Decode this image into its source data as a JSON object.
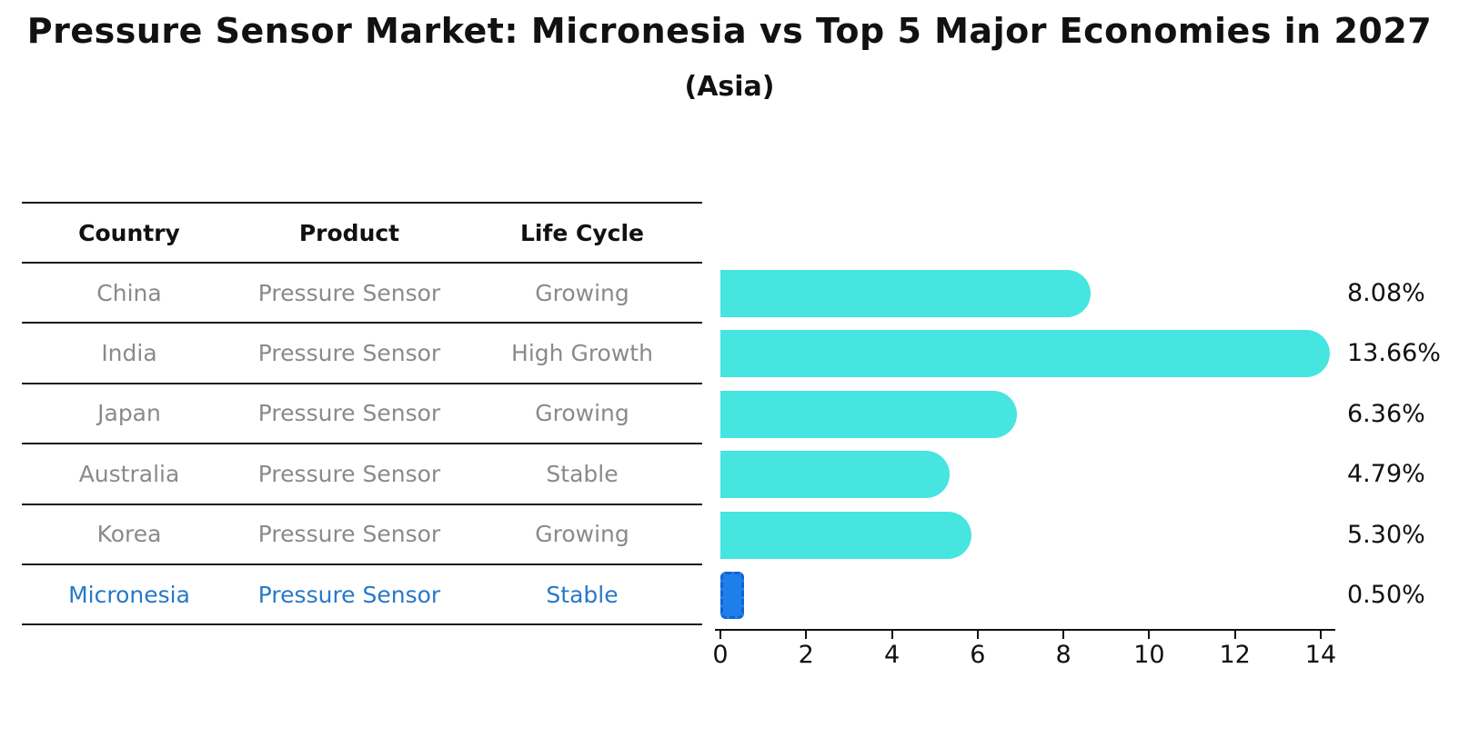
{
  "title": "Pressure Sensor Market: Micronesia vs Top 5 Major Economies in 2027",
  "subtitle": "(Asia)",
  "table": {
    "headers": [
      "Country",
      "Product",
      "Life Cycle"
    ],
    "rows": [
      {
        "country": "China",
        "product": "Pressure Sensor",
        "life_cycle": "Growing",
        "highlight": false
      },
      {
        "country": "India",
        "product": "Pressure Sensor",
        "life_cycle": "High Growth",
        "highlight": false
      },
      {
        "country": "Japan",
        "product": "Pressure Sensor",
        "life_cycle": "Growing",
        "highlight": false
      },
      {
        "country": "Australia",
        "product": "Pressure Sensor",
        "life_cycle": "Stable",
        "highlight": false
      },
      {
        "country": "Korea",
        "product": "Pressure Sensor",
        "life_cycle": "Growing",
        "highlight": false
      },
      {
        "country": "Micronesia",
        "product": "Pressure Sensor",
        "life_cycle": "Stable",
        "highlight": true
      }
    ]
  },
  "chart_data": {
    "type": "bar",
    "orientation": "horizontal",
    "title": "Pressure Sensor Market: Micronesia vs Top 5 Major Economies in 2027",
    "subtitle": "(Asia)",
    "categories": [
      "China",
      "India",
      "Japan",
      "Australia",
      "Korea",
      "Micronesia"
    ],
    "values": [
      8.08,
      13.66,
      6.36,
      4.79,
      5.3,
      0.5
    ],
    "labels": [
      "8.08%",
      "13.66%",
      "6.36%",
      "4.79%",
      "5.30%",
      "0.50%"
    ],
    "xlabel": "",
    "ylabel": "",
    "xlim": [
      0,
      14
    ],
    "xticks": [
      0,
      2,
      4,
      6,
      8,
      10,
      12,
      14
    ],
    "grid": false,
    "legend": "none",
    "bar_color": "#46E5E0",
    "highlight_color": "#1F7FE8",
    "highlight_border_color": "#1261D6",
    "highlight_index": 5,
    "highlight_text_color": "#2878C8"
  }
}
